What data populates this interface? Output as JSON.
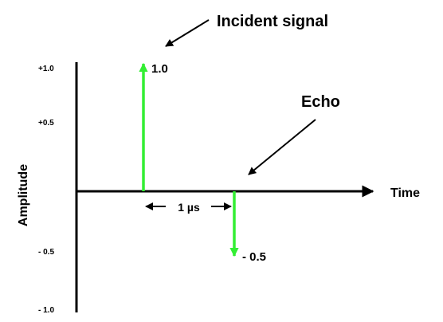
{
  "labels": {
    "incident_signal": "Incident signal",
    "echo": "Echo",
    "time": "Time",
    "amplitude": "Amplitude",
    "incident_value": "1.0",
    "echo_value": "- 0.5",
    "interval": "1 µs"
  },
  "ticks": [
    {
      "value": 1.0,
      "label": "+1.0"
    },
    {
      "value": 0.5,
      "label": "+0.5"
    },
    {
      "value": -0.5,
      "label": "- 0.5"
    },
    {
      "value": -1.0,
      "label": "- 1.0"
    }
  ],
  "signals": [
    {
      "name": "incident",
      "time_us": 0,
      "amplitude": 1.0
    },
    {
      "name": "echo",
      "time_us": 1,
      "amplitude": -0.5
    }
  ],
  "colors": {
    "signal": "#33ee33",
    "axis": "#000000"
  }
}
